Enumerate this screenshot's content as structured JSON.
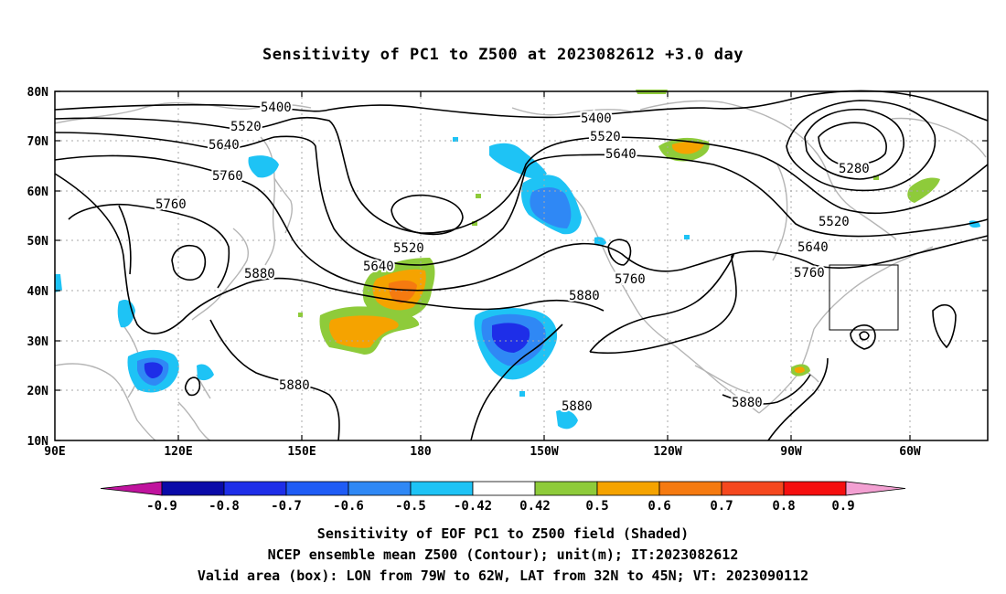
{
  "title": "Sensitivity of PC1 to Z500 at 2023082612 +3.0 day",
  "map": {
    "lon_labels": [
      "90E",
      "120E",
      "150E",
      "180",
      "150W",
      "120W",
      "90W",
      "60W"
    ],
    "lat_labels": [
      "80N",
      "70N",
      "60N",
      "50N",
      "40N",
      "30N",
      "20N",
      "10N"
    ],
    "contours": [
      {
        "label": "5400",
        "placements": [
          "5400",
          "5400"
        ]
      },
      {
        "label": "5520",
        "placements": [
          "5520",
          "5520",
          "5520",
          "5520"
        ]
      },
      {
        "label": "5640",
        "placements": [
          "5640",
          "5640",
          "5640",
          "5640"
        ]
      },
      {
        "label": "5760",
        "placements": [
          "5760",
          "5760",
          "5760",
          "5760"
        ]
      },
      {
        "label": "5880",
        "placements": [
          "5880",
          "5880",
          "5880",
          "5880",
          "5880"
        ]
      },
      {
        "label": "5280",
        "placements": [
          "5280"
        ]
      }
    ],
    "contour_labels": [
      {
        "id": "c5400a",
        "text": "5400"
      },
      {
        "id": "c5400b",
        "text": "5400"
      },
      {
        "id": "c5520a",
        "text": "5520"
      },
      {
        "id": "c5520b",
        "text": "5520"
      },
      {
        "id": "c5520c",
        "text": "5520"
      },
      {
        "id": "c5520d",
        "text": "5520"
      },
      {
        "id": "c5640a",
        "text": "5640"
      },
      {
        "id": "c5640b",
        "text": "5640"
      },
      {
        "id": "c5640c",
        "text": "5640"
      },
      {
        "id": "c5640d",
        "text": "5640"
      },
      {
        "id": "c5760a",
        "text": "5760"
      },
      {
        "id": "c5760b",
        "text": "5760"
      },
      {
        "id": "c5760c",
        "text": "5760"
      },
      {
        "id": "c5760d",
        "text": "5760"
      },
      {
        "id": "c5880a",
        "text": "5880"
      },
      {
        "id": "c5880b",
        "text": "5880"
      },
      {
        "id": "c5880c",
        "text": "5880"
      },
      {
        "id": "c5880d",
        "text": "5880"
      },
      {
        "id": "c5880e",
        "text": "5880"
      },
      {
        "id": "c5280",
        "text": "5280"
      }
    ],
    "valid_box": {
      "lon_from": "79W",
      "lon_to": "62W",
      "lat_from": "32N",
      "lat_to": "45N"
    }
  },
  "colorbar": {
    "tick_labels": [
      "-0.9",
      "-0.8",
      "-0.7",
      "-0.6",
      "-0.5",
      "-0.42",
      "0.42",
      "0.5",
      "0.6",
      "0.7",
      "0.8",
      "0.9"
    ],
    "colors": {
      "under": "#c0139e",
      "bins": [
        "#0a0aa8",
        "#1e2ee8",
        "#1f5cf5",
        "#2f88f5",
        "#1ec3f5",
        "#ffffff",
        "#8ecb3a",
        "#f5a300",
        "#f57a10",
        "#f5481e",
        "#f50f0f"
      ],
      "over": "#f3a0d2"
    }
  },
  "footer": {
    "line1": "Sensitivity of EOF PC1 to Z500 field (Shaded)",
    "line2": "NCEP ensemble mean Z500 (Contour); unit(m); IT:2023082612",
    "line3": "Valid area (box): LON from 79W to 62W, LAT from 32N to 45N; VT: 2023090112"
  }
}
